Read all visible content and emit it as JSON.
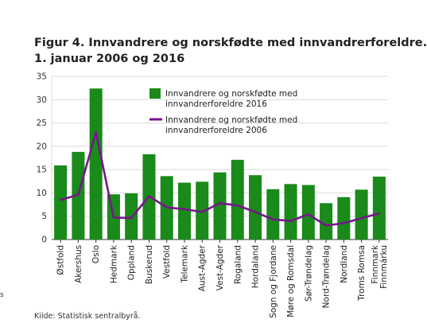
{
  "title": {
    "line1": "Figur 4. Innvandrere og norskfødte med innvandrerforeldre.",
    "line2": "1. januar 2006 og 2016"
  },
  "source": "Kilde: Statistisk sentralbyrå.",
  "edge_glyph": "s",
  "colors": {
    "bar": "#1a8a1a",
    "line": "#76168a",
    "grid": "#d9d9d9",
    "axis": "#333333"
  },
  "chart_data": {
    "type": "bar",
    "categories": [
      "Østfold",
      "Akershus",
      "Oslo",
      "Hedmark",
      "Oppland",
      "Buskerud",
      "Vestfold",
      "Telemark",
      "Aust-Agder",
      "Vest-Agder",
      "Rogaland",
      "Hordaland",
      "Sogn og Fjordane",
      "Møre og Romsdal",
      "Sør-Trøndelag",
      "Nord-Trøndelag",
      "Nordland",
      "Troms Romsa",
      "Finnmark\nFinnmárku"
    ],
    "series": [
      {
        "name": "Innvandrere og norskfødte med innvandrerforeldre 2016",
        "type": "bar",
        "values": [
          15.9,
          18.8,
          32.4,
          9.7,
          9.9,
          18.3,
          13.6,
          12.2,
          12.4,
          14.4,
          17.1,
          13.8,
          10.8,
          11.9,
          11.7,
          7.8,
          9.1,
          10.7,
          13.5
        ]
      },
      {
        "name": "Innvandrere og norskfødte med innvandrerforeldre 2006",
        "type": "line",
        "values": [
          8.5,
          9.6,
          23.0,
          4.7,
          4.6,
          9.3,
          6.9,
          6.5,
          5.9,
          7.8,
          7.3,
          5.9,
          4.3,
          4.0,
          5.4,
          3.0,
          3.5,
          4.6,
          5.6
        ]
      }
    ],
    "legend": [
      {
        "label": "Innvandrere og norskfødte med innvandrerforeldre 2016",
        "kind": "bar"
      },
      {
        "label": "Innvandrere og norskfødte med innvandrerforeldre 2006",
        "kind": "line"
      }
    ],
    "legend_placement": "top-right",
    "yticks": [
      0,
      5,
      10,
      15,
      20,
      25,
      30,
      35
    ],
    "ylim": [
      0,
      35
    ],
    "xlabel": "",
    "ylabel": "",
    "grid": true
  }
}
